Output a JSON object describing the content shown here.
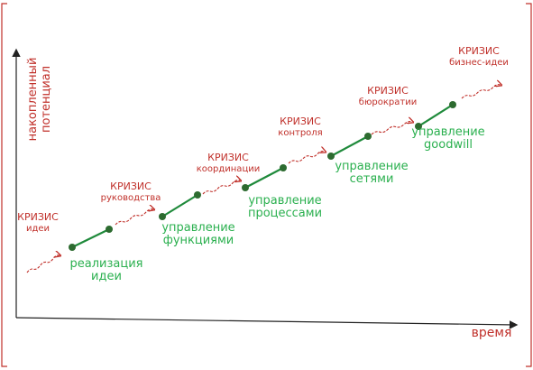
{
  "axes": {
    "y_label": [
      "накопленный",
      "потенциал"
    ],
    "x_label": "время"
  },
  "crises": [
    {
      "title": "КРИЗИС",
      "subject": "идеи"
    },
    {
      "title": "КРИЗИС",
      "subject": "руководства"
    },
    {
      "title": "КРИЗИС",
      "subject": "координации"
    },
    {
      "title": "КРИЗИС",
      "subject": "контроля"
    },
    {
      "title": "КРИЗИС",
      "subject": "бюрократии"
    },
    {
      "title": "КРИЗИС",
      "subject": "бизнес-идеи"
    }
  ],
  "stages": [
    {
      "label": [
        "реализация",
        "идеи"
      ]
    },
    {
      "label": [
        "управление",
        "функциями"
      ]
    },
    {
      "label": [
        "управление",
        "процессами"
      ]
    },
    {
      "label": [
        "управление",
        "сетями"
      ]
    },
    {
      "label": [
        "управление",
        "goodwill"
      ]
    }
  ]
}
